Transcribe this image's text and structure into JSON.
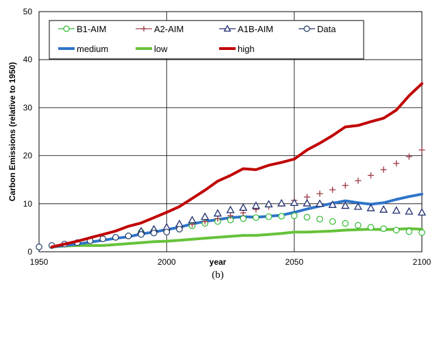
{
  "chart_data": {
    "type": "line",
    "title": "",
    "xlabel": "year",
    "ylabel": "Carbon Emissions (relative to 1950)",
    "caption": "(b)",
    "xlim": [
      1950,
      2100
    ],
    "ylim": [
      0,
      50
    ],
    "x_ticks": [
      1950,
      2000,
      2050,
      2100
    ],
    "y_ticks": [
      0,
      10,
      20,
      30,
      40,
      50
    ],
    "grid": true,
    "legend_position": "top-left",
    "series": [
      {
        "name": "B1-AIM",
        "color": "#2eb82e",
        "style": "markers",
        "marker": "circle-open",
        "x": [
          1990,
          1995,
          2000,
          2005,
          2010,
          2015,
          2020,
          2025,
          2030,
          2035,
          2040,
          2045,
          2050,
          2055,
          2060,
          2065,
          2070,
          2075,
          2080,
          2085,
          2090,
          2095,
          2100
        ],
        "y": [
          4.1,
          4.3,
          4.5,
          4.9,
          5.4,
          5.9,
          6.3,
          6.6,
          6.9,
          7.1,
          7.3,
          7.4,
          7.5,
          7.2,
          6.8,
          6.3,
          5.9,
          5.5,
          5.1,
          4.8,
          4.5,
          4.2,
          4.0
        ]
      },
      {
        "name": "A2-AIM",
        "color": "#a0404a",
        "style": "markers",
        "marker": "plus",
        "x": [
          1990,
          1995,
          2000,
          2005,
          2010,
          2015,
          2020,
          2025,
          2030,
          2035,
          2040,
          2045,
          2050,
          2055,
          2060,
          2065,
          2070,
          2075,
          2080,
          2085,
          2090,
          2095,
          2100
        ],
        "y": [
          4.1,
          4.3,
          4.6,
          5.1,
          5.7,
          6.3,
          6.9,
          7.5,
          8.1,
          8.8,
          9.4,
          10.0,
          10.7,
          11.4,
          12.1,
          12.9,
          13.8,
          14.8,
          15.9,
          17.1,
          18.4,
          19.8,
          21.2
        ]
      },
      {
        "name": "A1B-AIM",
        "color": "#1a2a6c",
        "style": "markers",
        "marker": "triangle-open",
        "x": [
          1990,
          1995,
          2000,
          2005,
          2010,
          2015,
          2020,
          2025,
          2030,
          2035,
          2040,
          2045,
          2050,
          2055,
          2060,
          2065,
          2070,
          2075,
          2080,
          2085,
          2090,
          2095,
          2100
        ],
        "y": [
          4.3,
          4.7,
          5.1,
          5.8,
          6.6,
          7.3,
          8.0,
          8.7,
          9.2,
          9.6,
          9.9,
          10.1,
          10.2,
          10.1,
          10.0,
          9.8,
          9.6,
          9.4,
          9.1,
          8.8,
          8.6,
          8.4,
          8.2
        ]
      },
      {
        "name": "Data",
        "color": "#1f3864",
        "style": "markers",
        "marker": "circle-open",
        "x": [
          1950,
          1955,
          1960,
          1965,
          1970,
          1975,
          1980,
          1985,
          1990,
          1995,
          2000,
          2005
        ],
        "y": [
          1.0,
          1.3,
          1.6,
          1.9,
          2.3,
          2.7,
          3.0,
          3.3,
          3.6,
          3.9,
          4.1,
          4.7
        ]
      },
      {
        "name": "medium",
        "color": "#2e75c9",
        "style": "line",
        "x": [
          1955,
          1960,
          1965,
          1970,
          1975,
          1980,
          1985,
          1990,
          1995,
          2000,
          2005,
          2010,
          2015,
          2020,
          2025,
          2030,
          2035,
          2040,
          2045,
          2050,
          2055,
          2060,
          2065,
          2070,
          2075,
          2080,
          2085,
          2090,
          2095,
          2100
        ],
        "y": [
          1.0,
          1.3,
          1.6,
          2.0,
          2.4,
          2.8,
          3.1,
          3.7,
          4.1,
          4.6,
          5.1,
          5.8,
          6.3,
          6.7,
          7.1,
          7.3,
          7.2,
          7.4,
          7.6,
          8.2,
          8.9,
          9.5,
          10.1,
          10.6,
          10.2,
          9.9,
          10.2,
          10.9,
          11.5,
          12.0
        ]
      },
      {
        "name": "low",
        "color": "#66c23a",
        "style": "line",
        "x": [
          1955,
          1960,
          1965,
          1970,
          1975,
          1980,
          1985,
          1990,
          1995,
          2000,
          2005,
          2010,
          2015,
          2020,
          2025,
          2030,
          2035,
          2040,
          2045,
          2050,
          2055,
          2060,
          2065,
          2070,
          2075,
          2080,
          2085,
          2090,
          2095,
          2100
        ],
        "y": [
          1.0,
          1.2,
          1.3,
          1.3,
          1.3,
          1.5,
          1.7,
          1.9,
          2.1,
          2.2,
          2.4,
          2.6,
          2.8,
          3.0,
          3.2,
          3.4,
          3.4,
          3.6,
          3.8,
          4.1,
          4.1,
          4.2,
          4.3,
          4.5,
          4.6,
          4.7,
          4.6,
          4.7,
          4.8,
          4.7
        ]
      },
      {
        "name": "high",
        "color": "#c00000",
        "style": "line",
        "x": [
          1955,
          1960,
          1965,
          1970,
          1975,
          1980,
          1985,
          1990,
          1995,
          2000,
          2005,
          2010,
          2015,
          2020,
          2025,
          2030,
          2035,
          2040,
          2045,
          2050,
          2055,
          2060,
          2065,
          2070,
          2075,
          2080,
          2085,
          2090,
          2095,
          2100
        ],
        "y": [
          1.0,
          1.6,
          2.2,
          2.9,
          3.6,
          4.3,
          5.3,
          6.0,
          7.1,
          8.2,
          9.4,
          11.1,
          12.8,
          14.7,
          15.9,
          17.3,
          17.1,
          18.0,
          18.6,
          19.3,
          21.2,
          22.6,
          24.2,
          26.0,
          26.3,
          27.1,
          27.8,
          29.5,
          32.5,
          35.0
        ]
      }
    ]
  }
}
